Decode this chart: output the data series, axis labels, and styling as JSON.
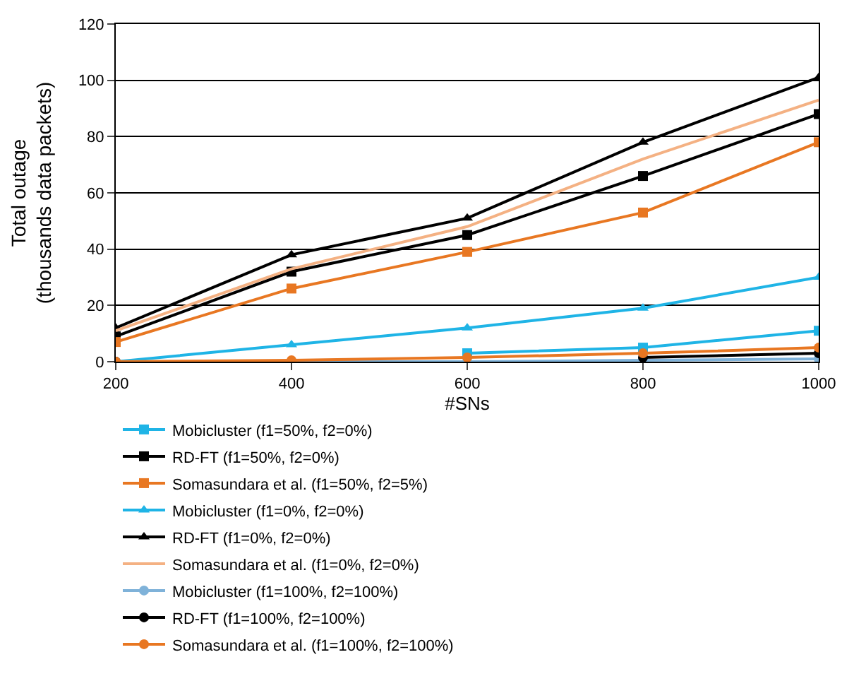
{
  "chart_data": {
    "type": "line",
    "xlabel": "#SNs",
    "ylabel": "Total outage\n(thousands data packets)",
    "x": [
      200,
      400,
      600,
      800,
      1000
    ],
    "xlim": [
      200,
      1000
    ],
    "xticks": [
      200,
      400,
      600,
      800,
      1000
    ],
    "ylim": [
      0,
      120
    ],
    "yticks": [
      0,
      20,
      40,
      60,
      80,
      100,
      120
    ],
    "grid": "y",
    "legend": "bottom",
    "series": [
      {
        "name": "Mobicluster (f1=50%, f2=0%)",
        "color": "#1fb4e6",
        "marker": "square",
        "values": [
          null,
          null,
          3,
          5,
          11
        ]
      },
      {
        "name": "RD-FT (f1=50%, f2=0%)",
        "color": "#000000",
        "marker": "square",
        "values": [
          9,
          32,
          45,
          66,
          88
        ]
      },
      {
        "name": "Somasundara et al. (f1=50%, f2=5%)",
        "color": "#e87722",
        "marker": "square",
        "values": [
          7,
          26,
          39,
          53,
          78
        ]
      },
      {
        "name": "Mobicluster (f1=0%, f2=0%)",
        "color": "#1fb4e6",
        "marker": "triangle",
        "values": [
          0,
          6,
          12,
          19,
          30
        ]
      },
      {
        "name": "RD-FT (f1=0%, f2=0%)",
        "color": "#000000",
        "marker": "triangle",
        "values": [
          12,
          38,
          51,
          78,
          101
        ]
      },
      {
        "name": "Somasundara et al. (f1=0%, f2=0%)",
        "color": "#f4b183",
        "marker": "none",
        "values": [
          11,
          33,
          48,
          72,
          93
        ]
      },
      {
        "name": "Mobicluster (f1=100%, f2=100%)",
        "color": "#7fb2d9",
        "marker": "circle",
        "values": [
          0,
          0,
          0,
          0.5,
          1
        ]
      },
      {
        "name": "RD-FT (f1=100%, f2=100%)",
        "color": "#000000",
        "marker": "circle",
        "values": [
          0,
          0,
          null,
          1.5,
          3
        ]
      },
      {
        "name": "Somasundara et al. (f1=100%, f2=100%)",
        "color": "#e87722",
        "marker": "circle",
        "values": [
          0,
          0.5,
          1.5,
          3,
          5
        ]
      }
    ]
  }
}
